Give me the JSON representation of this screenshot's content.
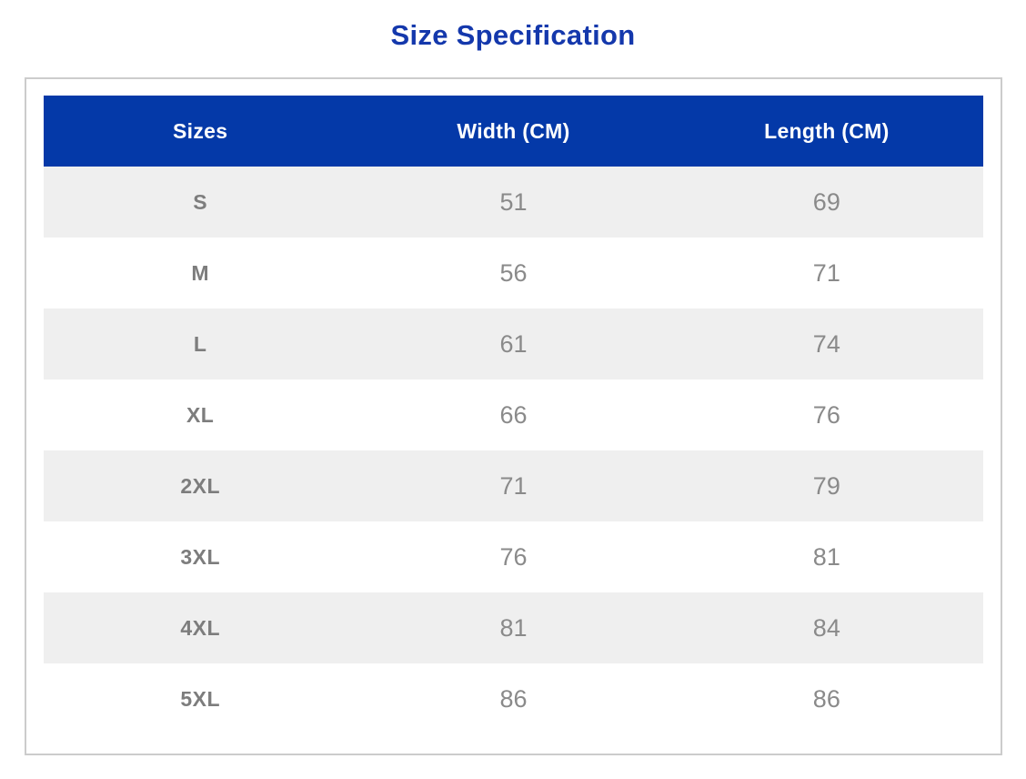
{
  "title": "Size Specification",
  "colors": {
    "title_text": "#1438ac",
    "header_bg": "#0439a8",
    "header_text": "#ffffff",
    "row_alt_bg": "#efefef",
    "row_bg": "#ffffff",
    "size_label_text": "#7d7d7d",
    "number_text": "#8a8a8a",
    "container_border": "#cccccc"
  },
  "chart_data": {
    "type": "table",
    "title": "Size Specification",
    "columns": [
      "Sizes",
      "Width (CM)",
      "Length (CM)"
    ],
    "rows": [
      [
        "S",
        51,
        69
      ],
      [
        "M",
        56,
        71
      ],
      [
        "L",
        61,
        74
      ],
      [
        "XL",
        66,
        76
      ],
      [
        "2XL",
        71,
        79
      ],
      [
        "3XL",
        76,
        81
      ],
      [
        "4XL",
        81,
        84
      ],
      [
        "5XL",
        86,
        86
      ]
    ]
  },
  "table": {
    "headers": [
      "Sizes",
      "Width (CM)",
      "Length (CM)"
    ],
    "rows": [
      {
        "size": "S",
        "width": "51",
        "length": "69"
      },
      {
        "size": "M",
        "width": "56",
        "length": "71"
      },
      {
        "size": "L",
        "width": "61",
        "length": "74"
      },
      {
        "size": "XL",
        "width": "66",
        "length": "76"
      },
      {
        "size": "2XL",
        "width": "71",
        "length": "79"
      },
      {
        "size": "3XL",
        "width": "76",
        "length": "81"
      },
      {
        "size": "4XL",
        "width": "81",
        "length": "84"
      },
      {
        "size": "5XL",
        "width": "86",
        "length": "86"
      }
    ]
  }
}
